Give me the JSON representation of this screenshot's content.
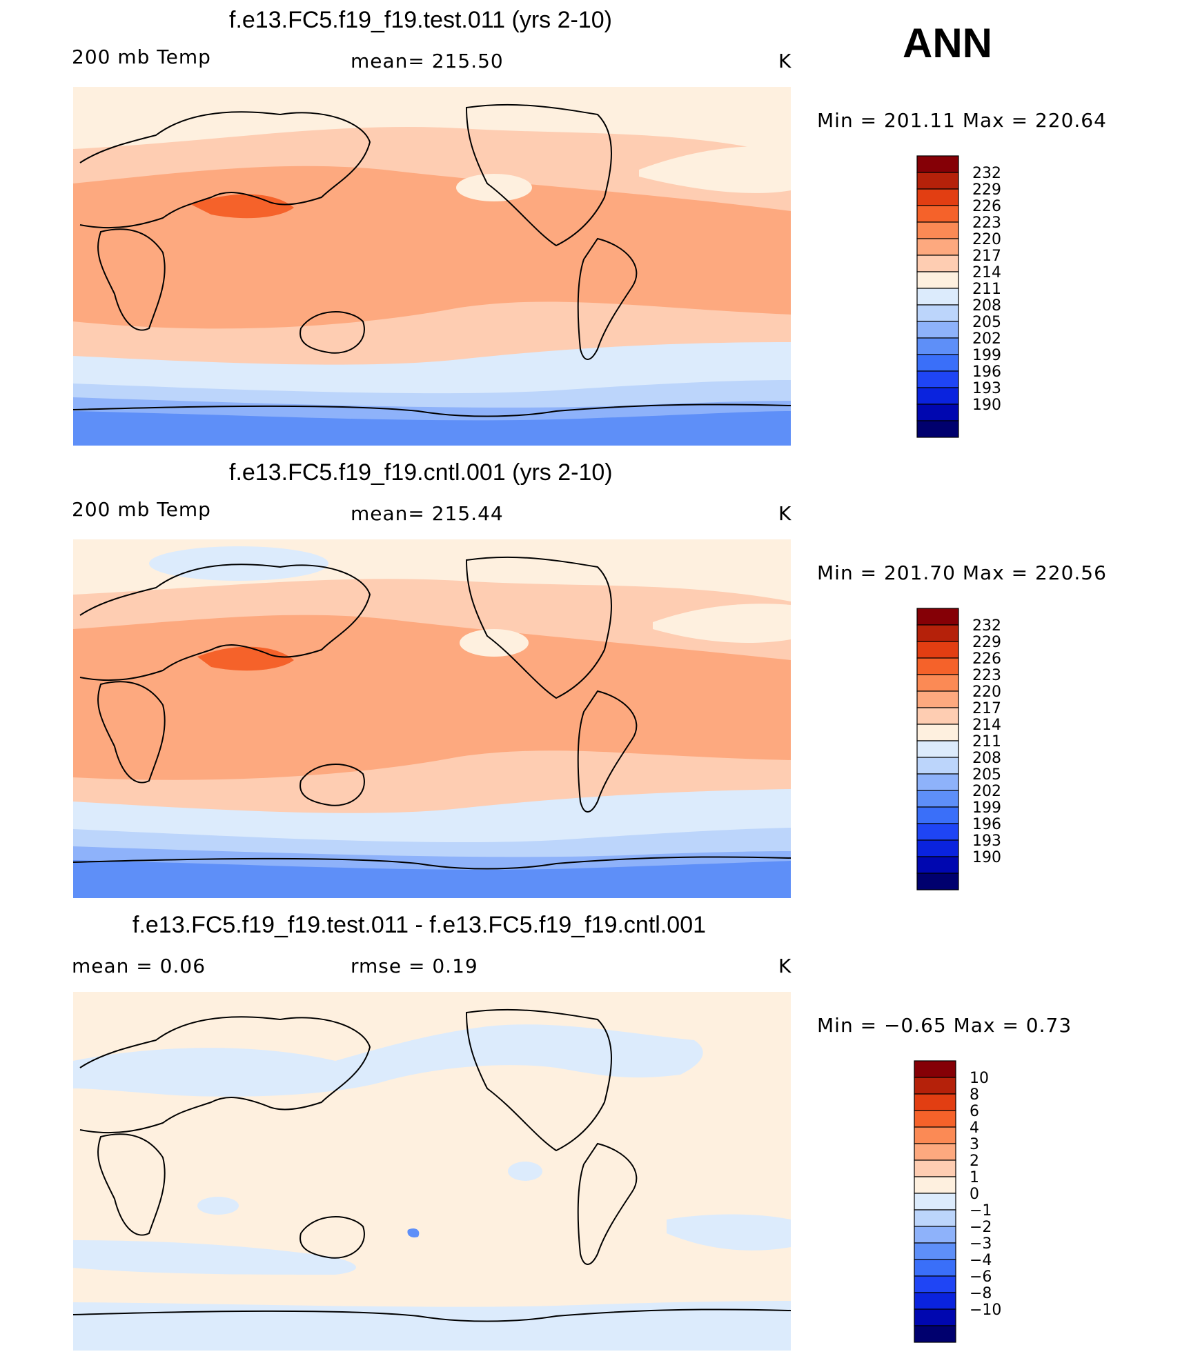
{
  "season": "ANN",
  "colors": {
    "abs": [
      "#00006e",
      "#0007b0",
      "#0a23de",
      "#1f45f5",
      "#3a6ff9",
      "#5e8ff8",
      "#8eb2fa",
      "#bcd5fb",
      "#dcebfc",
      "#fef0df",
      "#fecdb2",
      "#fda97f",
      "#fb8a55",
      "#f5622a",
      "#e23e12",
      "#b5210a",
      "#850006"
    ],
    "diff": [
      "#00006e",
      "#0007b0",
      "#0a23de",
      "#1f45f5",
      "#3a6ff9",
      "#5e8ff8",
      "#8eb2fa",
      "#bcd5fb",
      "#dcebfc",
      "#fef0df",
      "#fecdb2",
      "#fda97f",
      "#fb8a55",
      "#f5622a",
      "#e23e12",
      "#b5210a",
      "#850006"
    ]
  },
  "panels": [
    {
      "title": "f.e13.FC5.f19_f19.test.011 (yrs 2-10)",
      "left": "200 mb Temp",
      "center": "mean=  215.50",
      "units": "K",
      "minmax": "Min  =  201.11  Max  =  220.64"
    },
    {
      "title": "f.e13.FC5.f19_f19.cntl.001 (yrs 2-10)",
      "left": "200 mb Temp",
      "center": "mean=  215.44",
      "units": "K",
      "minmax": "Min  =  201.70  Max  =  220.56"
    },
    {
      "title": "f.e13.FC5.f19_f19.test.011 - f.e13.FC5.f19_f19.cntl.001",
      "left": "mean  =      0.06",
      "center": "rmse  =      0.19",
      "units": "K",
      "minmax": "Min  =    −0.65  Max  =      0.73"
    }
  ],
  "chart_data": [
    {
      "type": "heatmap",
      "title": "f.e13.FC5.f19_f19.test.011 (yrs 2-10)",
      "variable": "200 mb Temp",
      "units": "K",
      "mean": 215.5,
      "min": 201.11,
      "max": 220.64,
      "contour_levels": [
        "232",
        "229",
        "226",
        "223",
        "220",
        "217",
        "214",
        "211",
        "208",
        "205",
        "202",
        "199",
        "196",
        "193",
        "190"
      ]
    },
    {
      "type": "heatmap",
      "title": "f.e13.FC5.f19_f19.cntl.001 (yrs 2-10)",
      "variable": "200 mb Temp",
      "units": "K",
      "mean": 215.44,
      "min": 201.7,
      "max": 220.56,
      "contour_levels": [
        "232",
        "229",
        "226",
        "223",
        "220",
        "217",
        "214",
        "211",
        "208",
        "205",
        "202",
        "199",
        "196",
        "193",
        "190"
      ]
    },
    {
      "type": "heatmap",
      "title": "f.e13.FC5.f19_f19.test.011 - f.e13.FC5.f19_f19.cntl.001",
      "units": "K",
      "mean": 0.06,
      "rmse": 0.19,
      "min": -0.65,
      "max": 0.73,
      "contour_levels": [
        "10",
        "8",
        "6",
        "4",
        "3",
        "2",
        "1",
        "0",
        "−1",
        "−2",
        "−3",
        "−4",
        "−6",
        "−8",
        "−10"
      ]
    }
  ]
}
